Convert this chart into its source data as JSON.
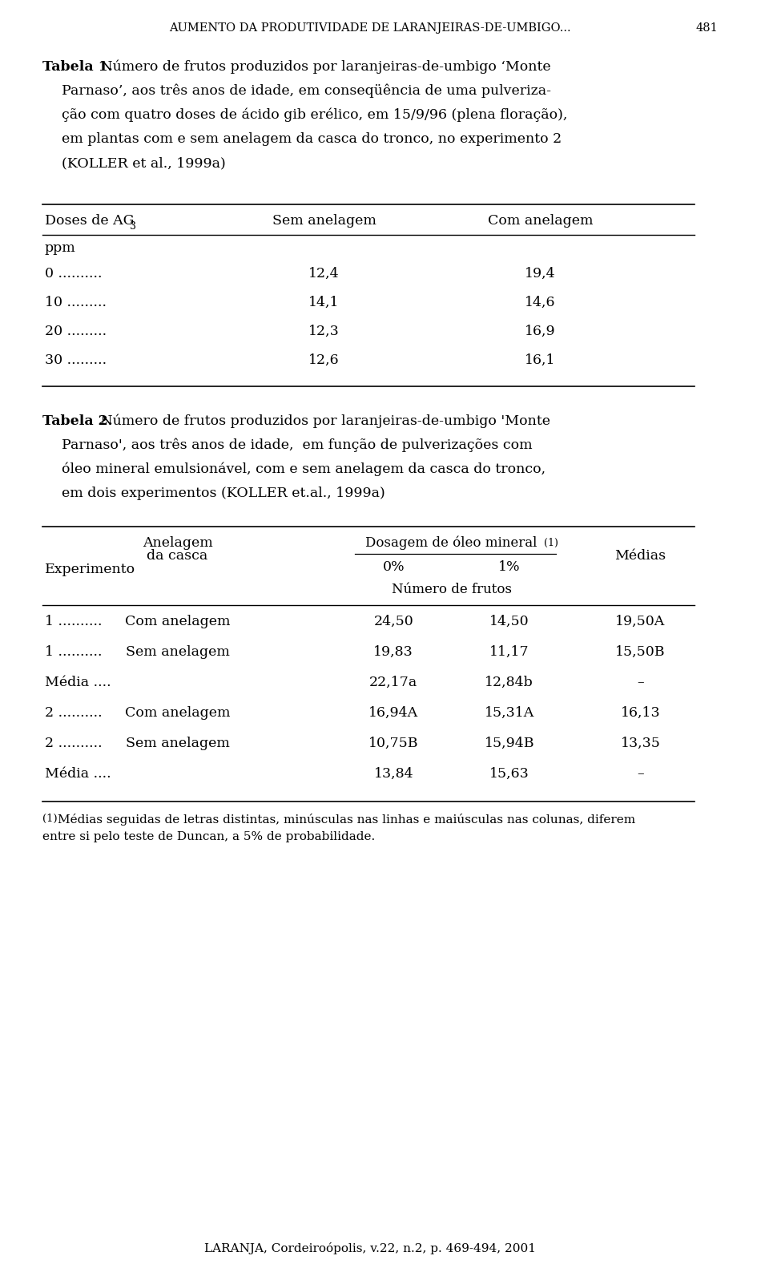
{
  "page_header": "AUMENTO DA PRODUTIVIDADE DE LARANJEIRAS-DE-UMBIGO...",
  "page_number": "481",
  "bg_color": "#ffffff",
  "text_color": "#000000",
  "table1_caption_bold": "Tabela 1.",
  "table1_caption_rest": " Número de frutos produzidos por laranjeiras-de-umbigo ‘Monte Parnaso’, aos três anos de idade, em conseqüência de uma pulverização com quatro doses de ácido gib erélico, em 15/9/96 (plena floração), em plantas com e sem anelagem da casca do tronco, no experimento 2 (KOLLER et al., 1999a)",
  "t1_header_col1": "Doses de AG",
  "t1_header_col1_sub": "3",
  "t1_header_col2": "Sem anelagem",
  "t1_header_col3": "Com anelagem",
  "t1_subheader": "ppm",
  "t1_rows": [
    [
      "0 ..........",
      "12,4",
      "19,4"
    ],
    [
      "10 .........",
      "14,1",
      "14,6"
    ],
    [
      "20 .........",
      "12,3",
      "16,9"
    ],
    [
      "30 .........",
      "12,6",
      "16,1"
    ]
  ],
  "table2_caption_bold": "Tabela 2.",
  "table2_caption_rest": " Número de frutos produzidos por laranjeiras-de-umbigo 'Monte Parnaso', aos três anos de idade,  em função de pulverizações com óleo mineral emulsionável, com e sem anelagem da casca do tronco, em dois experimentos (KOLLER et.al., 1999a)",
  "t2_h_exp": "Experimento",
  "t2_h_anel": "Anelagem\nda casca",
  "t2_h_dosagem": "Dosagem de óleo mineral",
  "t2_h_dosagem_sup": "(1)",
  "t2_h_0pct": "0%",
  "t2_h_1pct": "1%",
  "t2_h_medias": "Médias",
  "t2_h_numfrutos": "Número de frutos",
  "t2_rows": [
    [
      "1 ..........",
      "Com anelagem",
      "24,50",
      "14,50",
      "19,50A"
    ],
    [
      "1 ..........",
      "Sem anelagem",
      "19,83",
      "11,17",
      "15,50B"
    ],
    [
      "Média ....",
      "",
      "22,17a",
      "12,84b",
      "–"
    ],
    [
      "2 ..........",
      "Com anelagem",
      "16,94A",
      "15,31A",
      "16,13"
    ],
    [
      "2 ..........",
      "Sem anelagem",
      "10,75B",
      "15,94B",
      "13,35"
    ],
    [
      "Média ....",
      "",
      "13,84",
      "15,63",
      "–"
    ]
  ],
  "footnote": "⁽¹⁾ Médias seguidas de letras distintas, minúsculas nas linhas e maiúsculas nas colunas, diferem entre si pelo teste de Duncan, a 5% de probabilidade.",
  "footer": "LARANJA, Cordeiroópolis, v.22, n.2, p. 469-494, 2001"
}
